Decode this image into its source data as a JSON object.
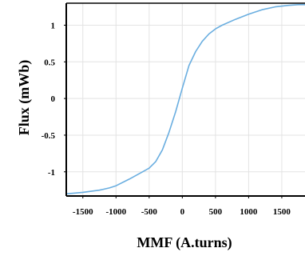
{
  "chart_data": {
    "type": "line",
    "title": "",
    "xlabel": "MMF (A.turns)",
    "ylabel": "Flux (mWb)",
    "xlim": [
      -1750,
      1850
    ],
    "ylim": [
      -1.33,
      1.3
    ],
    "xticks": [
      -1500,
      -1000,
      -500,
      0,
      500,
      1000,
      1500
    ],
    "yticks": [
      1,
      0.5,
      0,
      -0.5,
      -1
    ],
    "x_tick_labels": [
      "-1500",
      "-1000",
      "-500",
      "0",
      "500",
      "1000",
      "1500"
    ],
    "y_tick_labels": [
      "1",
      "0.5",
      "0",
      "-0.5",
      "-1"
    ],
    "grid": true,
    "legend": "none",
    "line_color": "#6aaee0",
    "series": [
      {
        "x": [
          -1750,
          -1500,
          -1250,
          -1100,
          -1000,
          -800,
          -600,
          -500,
          -400,
          -300,
          -200,
          -100,
          0,
          100,
          200,
          300,
          400,
          500,
          600,
          800,
          1000,
          1200,
          1400,
          1600,
          1750,
          1850
        ],
        "y": [
          -1.3,
          -1.28,
          -1.25,
          -1.22,
          -1.19,
          -1.1,
          -1.0,
          -0.95,
          -0.86,
          -0.7,
          -0.46,
          -0.18,
          0.14,
          0.45,
          0.64,
          0.78,
          0.88,
          0.95,
          1.0,
          1.08,
          1.15,
          1.21,
          1.25,
          1.27,
          1.28,
          1.28
        ]
      }
    ]
  }
}
